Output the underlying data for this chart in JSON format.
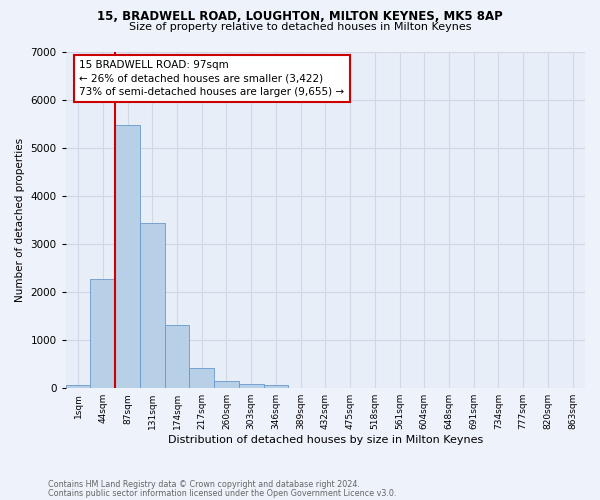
{
  "title1": "15, BRADWELL ROAD, LOUGHTON, MILTON KEYNES, MK5 8AP",
  "title2": "Size of property relative to detached houses in Milton Keynes",
  "xlabel": "Distribution of detached houses by size in Milton Keynes",
  "ylabel": "Number of detached properties",
  "bin_labels": [
    "1sqm",
    "44sqm",
    "87sqm",
    "131sqm",
    "174sqm",
    "217sqm",
    "260sqm",
    "303sqm",
    "346sqm",
    "389sqm",
    "432sqm",
    "475sqm",
    "518sqm",
    "561sqm",
    "604sqm",
    "648sqm",
    "691sqm",
    "734sqm",
    "777sqm",
    "820sqm",
    "863sqm"
  ],
  "bar_heights": [
    70,
    2280,
    5480,
    3430,
    1310,
    430,
    160,
    95,
    60,
    0,
    0,
    0,
    0,
    0,
    0,
    0,
    0,
    0,
    0,
    0,
    0
  ],
  "bar_color": "#b8cfe8",
  "bar_edge_color": "#6699cc",
  "annotation_text": "15 BRADWELL ROAD: 97sqm\n← 26% of detached houses are smaller (3,422)\n73% of semi-detached houses are larger (9,655) →",
  "annotation_box_color": "#ffffff",
  "annotation_border_color": "#cc0000",
  "vline_color": "#cc0000",
  "ylim": [
    0,
    7000
  ],
  "yticks": [
    0,
    1000,
    2000,
    3000,
    4000,
    5000,
    6000,
    7000
  ],
  "grid_color": "#d0d8e8",
  "bg_color": "#e8eef8",
  "fig_bg_color": "#eef2fa",
  "footer_line1": "Contains HM Land Registry data © Crown copyright and database right 2024.",
  "footer_line2": "Contains public sector information licensed under the Open Government Licence v3.0."
}
